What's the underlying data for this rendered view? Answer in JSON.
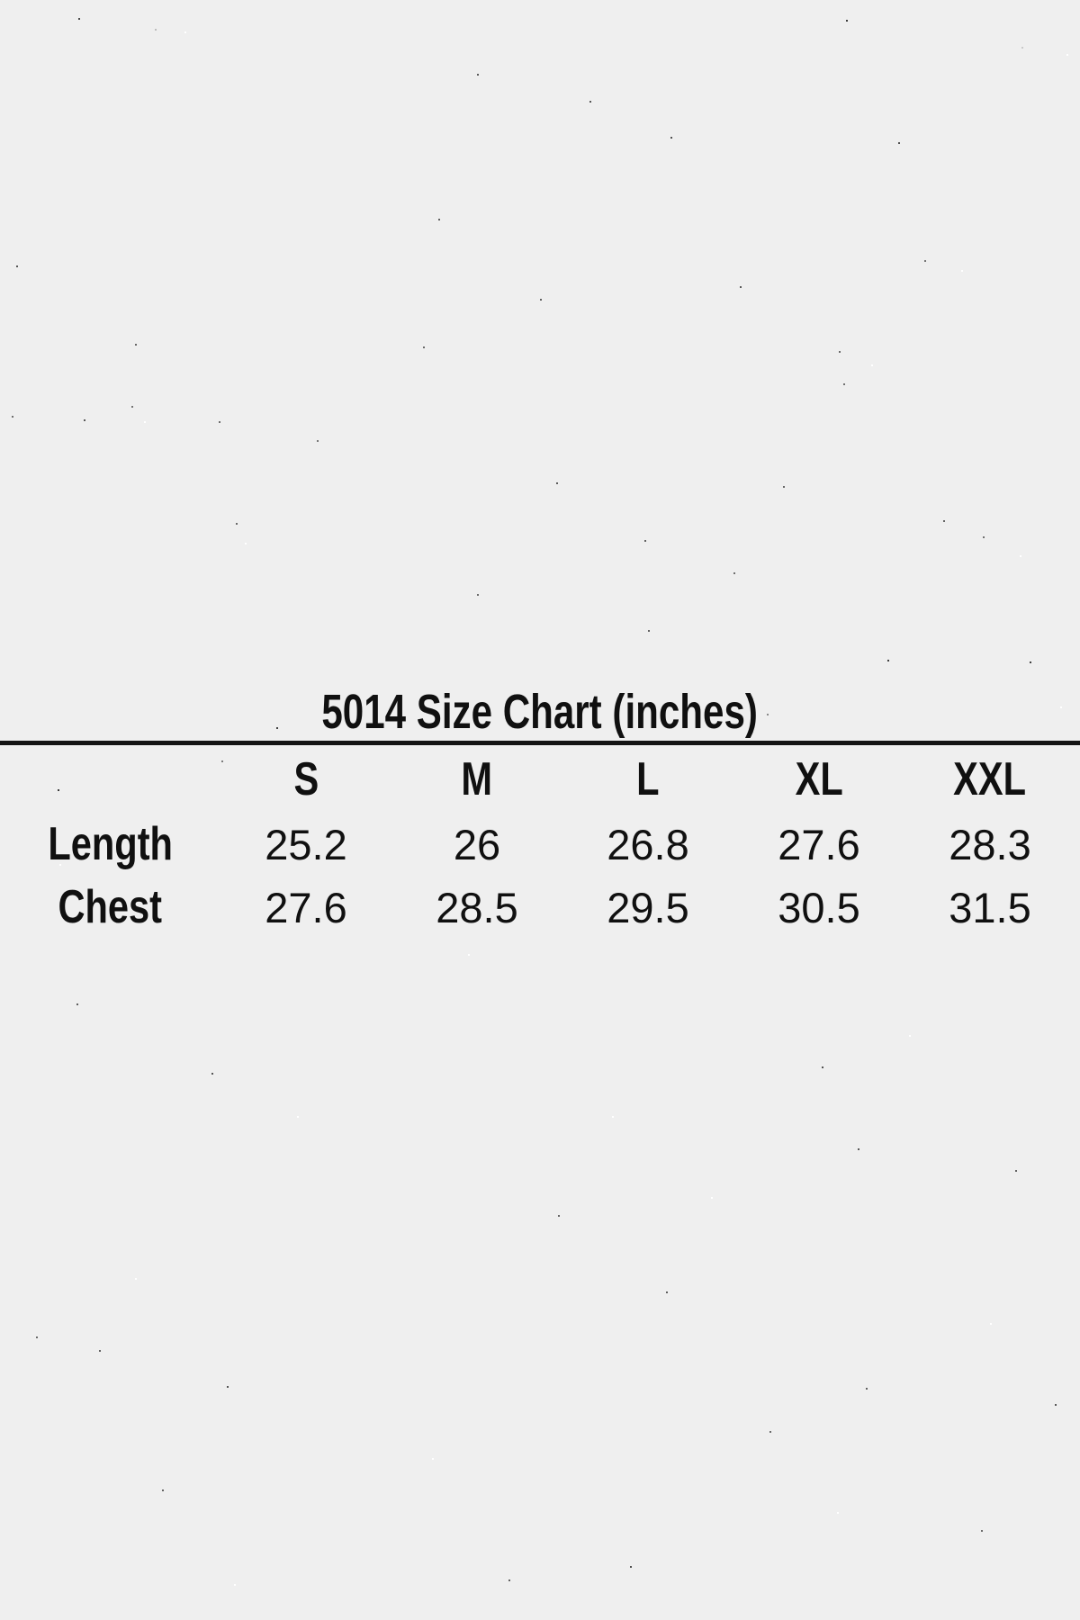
{
  "page": {
    "background": "#efefef",
    "text_color": "#101010",
    "divider_color": "#141414"
  },
  "chart_data": {
    "type": "table",
    "title": "5014 Size Chart (inches)",
    "unit": "inches",
    "columns": [
      "S",
      "M",
      "L",
      "XL",
      "XXL"
    ],
    "rows": [
      {
        "label": "Length",
        "values": [
          "25.2",
          "26",
          "26.8",
          "27.6",
          "28.3"
        ]
      },
      {
        "label": "Chest",
        "values": [
          "27.6",
          "28.5",
          "29.5",
          "30.5",
          "31.5"
        ]
      }
    ],
    "layout": {
      "grid": "off",
      "header_rule": "full-width"
    }
  }
}
